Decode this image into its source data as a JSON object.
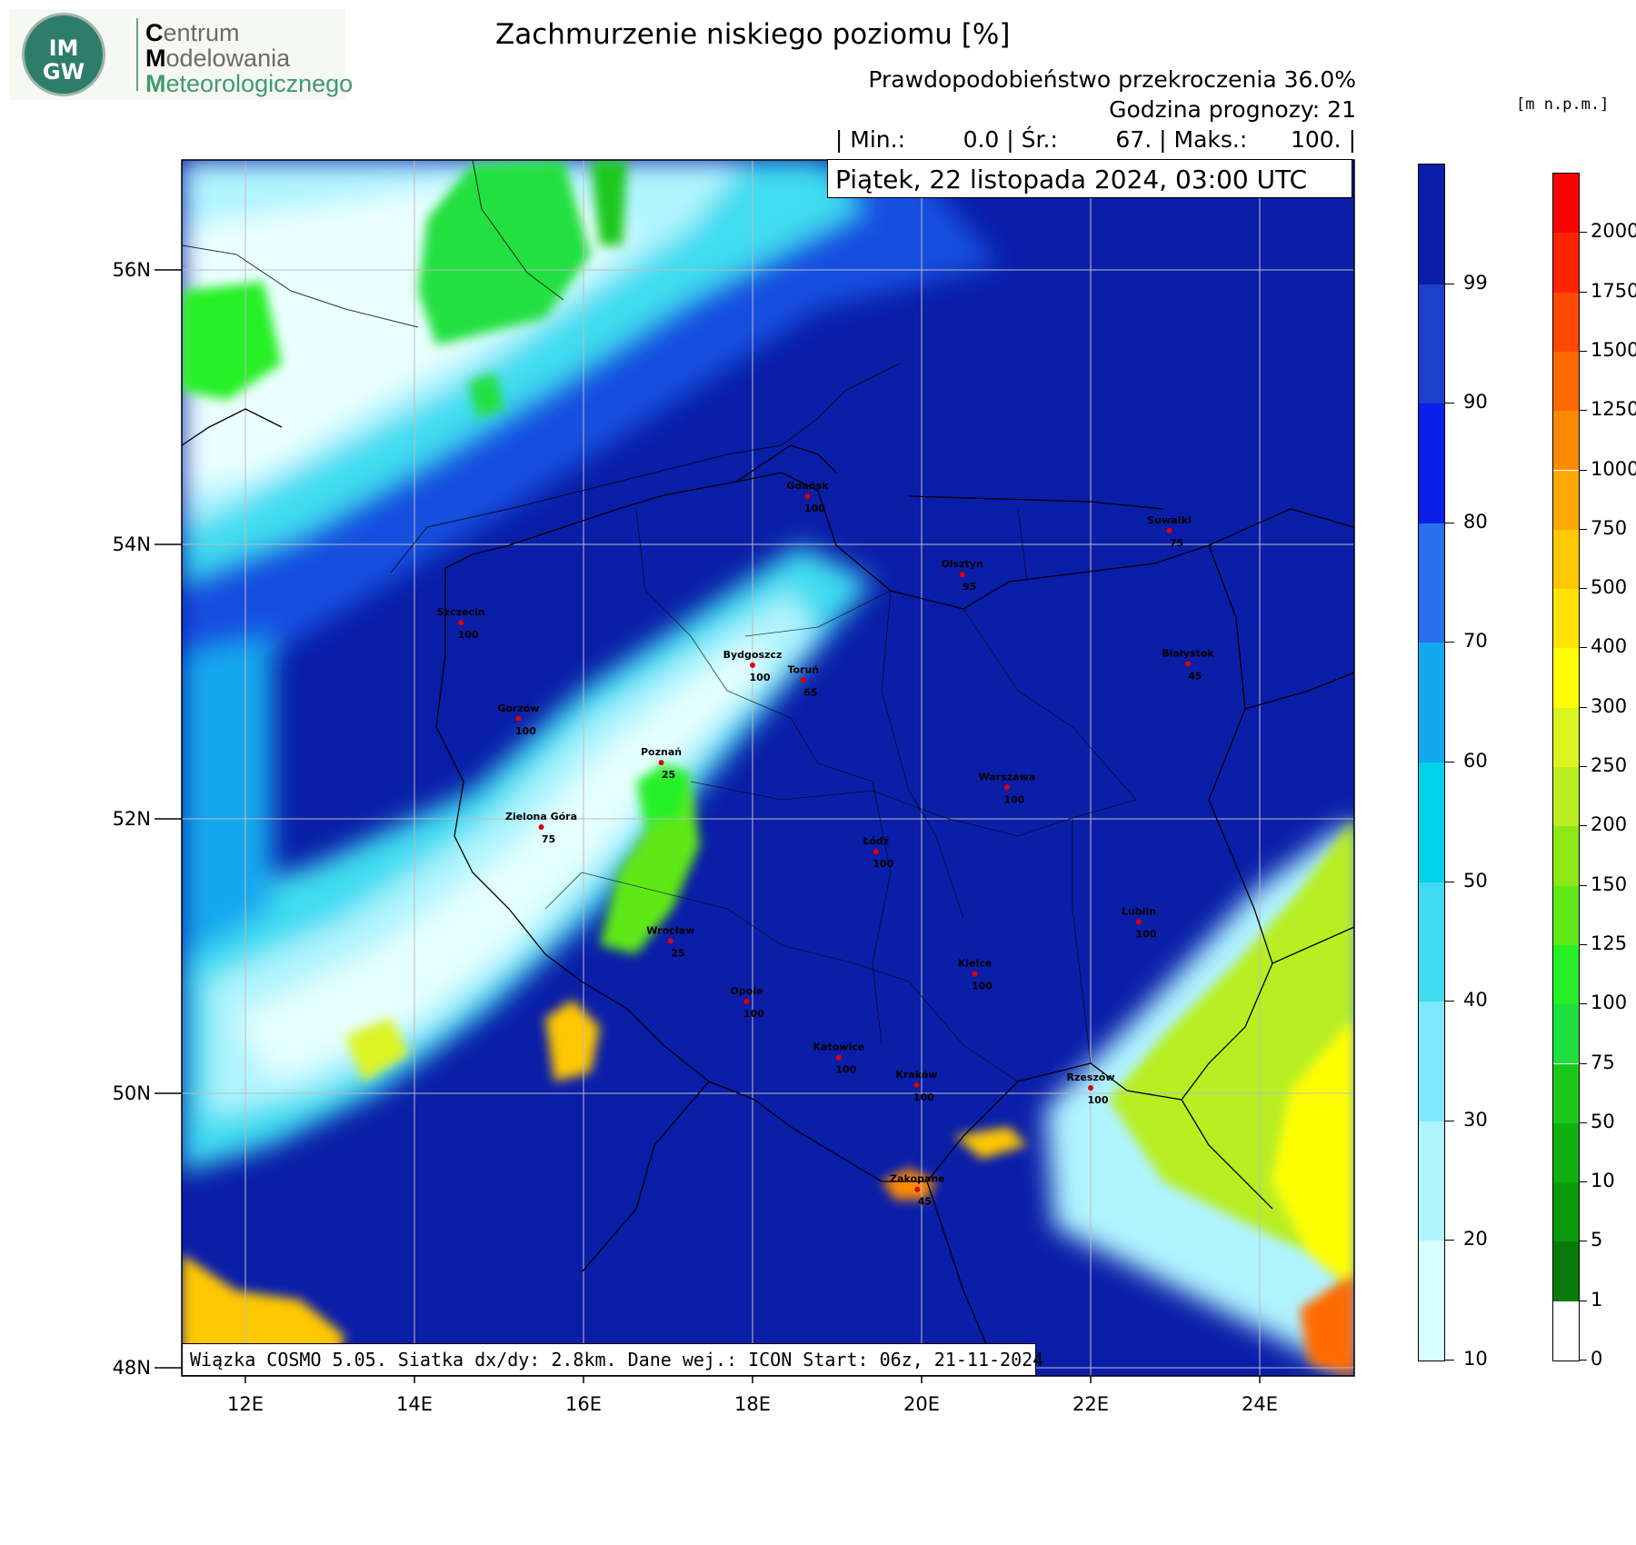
{
  "logo": {
    "emblem_top": "IM",
    "emblem_bottom": "GW",
    "line1_initial": "C",
    "line1_rest": "entrum",
    "line2_initial": "M",
    "line2_rest": "odelowania",
    "line3_initial": "M",
    "line3_rest": "eteorologicznego"
  },
  "title": "Zachmurzenie niskiego poziomu [%]",
  "header": {
    "probability": "Prawdopodobieństwo przekroczenia 36.0%",
    "forecast_hour": "Godzina prognozy: 21",
    "stats": "| Min.:        0.0 | Śr.:        67. | Maks.:      100. |"
  },
  "date": "Piątek, 22 listopada 2024, 03:00 UTC",
  "footer": "Wiązka COSMO 5.05. Siatka dx/dy: 2.8km. Dane wej.: ICON Start: 06z, 21-11-2024",
  "units": "[m n.p.m.]",
  "map": {
    "lon_labels": [
      "12E",
      "14E",
      "16E",
      "18E",
      "20E",
      "22E",
      "24E"
    ],
    "lat_labels": [
      "56N",
      "54N",
      "52N",
      "50N",
      "48N"
    ],
    "cities": [
      {
        "name": "Gdańsk",
        "value": "100",
        "lon": 18.65,
        "lat": 54.35
      },
      {
        "name": "Suwałki",
        "value": "75",
        "lon": 22.93,
        "lat": 54.1
      },
      {
        "name": "Olsztyn",
        "value": "95",
        "lon": 20.48,
        "lat": 53.78
      },
      {
        "name": "Szczecin",
        "value": "100",
        "lon": 14.55,
        "lat": 53.43
      },
      {
        "name": "Bydgoszcz",
        "value": "100",
        "lon": 18.0,
        "lat": 53.12
      },
      {
        "name": "Toruń",
        "value": "65",
        "lon": 18.6,
        "lat": 53.01
      },
      {
        "name": "Białystok",
        "value": "45",
        "lon": 23.15,
        "lat": 53.13
      },
      {
        "name": "Gorzów",
        "value": "100",
        "lon": 15.23,
        "lat": 52.73
      },
      {
        "name": "Poznań",
        "value": "25",
        "lon": 16.92,
        "lat": 52.41
      },
      {
        "name": "Warszawa",
        "value": "100",
        "lon": 21.01,
        "lat": 52.23
      },
      {
        "name": "Zielona Góra",
        "value": "75",
        "lon": 15.5,
        "lat": 51.94
      },
      {
        "name": "Łódź",
        "value": "100",
        "lon": 19.46,
        "lat": 51.76
      },
      {
        "name": "Lublin",
        "value": "100",
        "lon": 22.57,
        "lat": 51.25
      },
      {
        "name": "Wrocław",
        "value": "25",
        "lon": 17.03,
        "lat": 51.11
      },
      {
        "name": "Kielce",
        "value": "100",
        "lon": 20.63,
        "lat": 50.87
      },
      {
        "name": "Opole",
        "value": "100",
        "lon": 17.93,
        "lat": 50.67
      },
      {
        "name": "Katowice",
        "value": "100",
        "lon": 19.02,
        "lat": 50.26
      },
      {
        "name": "Kraków",
        "value": "100",
        "lon": 19.94,
        "lat": 50.06
      },
      {
        "name": "Rzeszów",
        "value": "100",
        "lon": 22.0,
        "lat": 50.04
      },
      {
        "name": "Zakopane",
        "value": "45",
        "lon": 19.95,
        "lat": 49.3
      }
    ]
  },
  "cloud_scale": {
    "labels": [
      "10",
      "20",
      "30",
      "40",
      "50",
      "60",
      "70",
      "80",
      "90",
      "99"
    ],
    "colors": [
      "#d8ffff",
      "#b0f4ff",
      "#7fe8ff",
      "#3fdcf0",
      "#00d2ea",
      "#14a8ee",
      "#2a70f0",
      "#0a1fe8",
      "#1c3fcc",
      "#0a1ea8"
    ]
  },
  "terrain_scale": {
    "labels": [
      "0",
      "1",
      "5",
      "10",
      "50",
      "75",
      "100",
      "125",
      "150",
      "200",
      "250",
      "300",
      "400",
      "500",
      "750",
      "1000",
      "1250",
      "1500",
      "1750",
      "2000"
    ],
    "colors": [
      "#ffffff",
      "#0a7a0a",
      "#0d990d",
      "#10b010",
      "#1ac81a",
      "#20e040",
      "#28f028",
      "#60e818",
      "#8ee818",
      "#b8ee20",
      "#dcf420",
      "#ffff00",
      "#ffe400",
      "#ffc800",
      "#ffa800",
      "#ff8a00",
      "#ff6a00",
      "#ff4800",
      "#ff2400",
      "#ff0000"
    ]
  }
}
